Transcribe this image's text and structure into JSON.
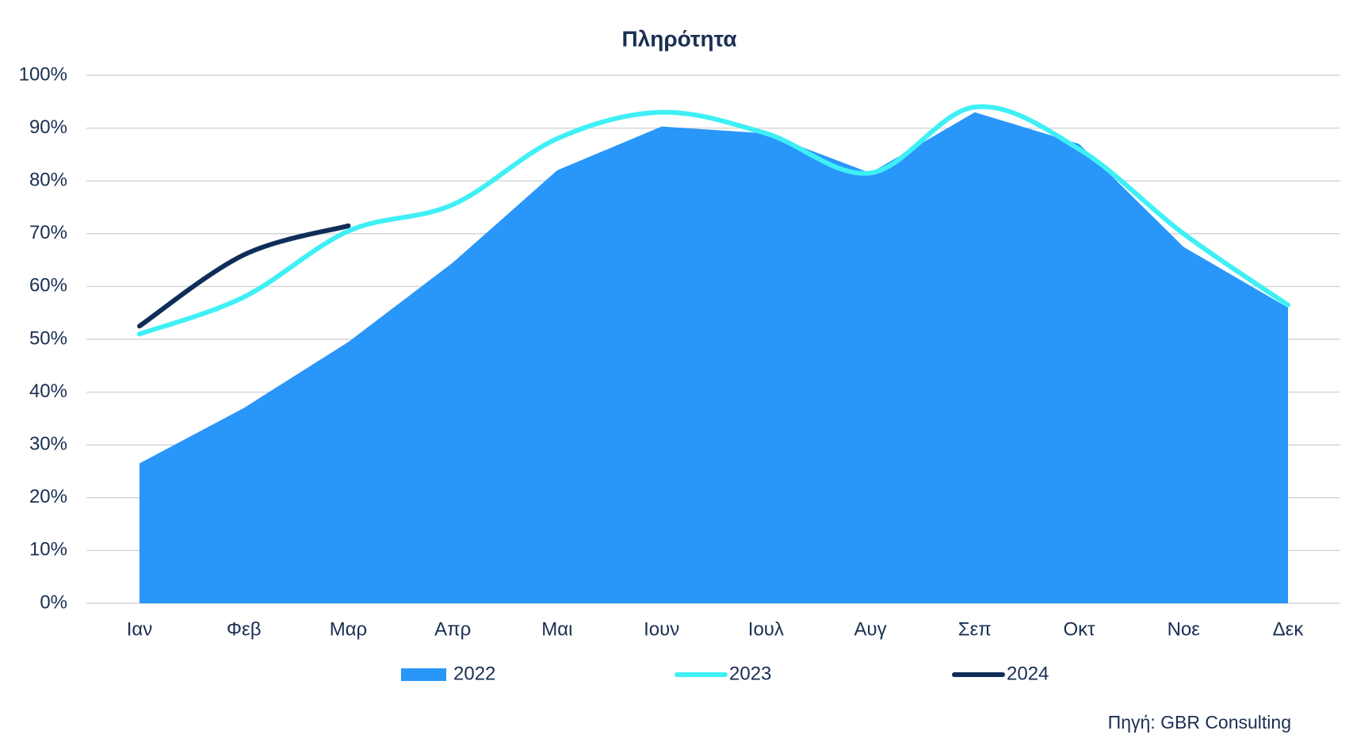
{
  "chart_data": {
    "type": "area-line",
    "title": "Πληρότητα",
    "categories": [
      "Ιαν",
      "Φεβ",
      "Μαρ",
      "Απρ",
      "Μαι",
      "Ιουν",
      "Ιουλ",
      "Αυγ",
      "Σεπ",
      "Οκτ",
      "Νοε",
      "Δεκ"
    ],
    "series": [
      {
        "name": "2022",
        "color": "#2996fa",
        "kind": "area",
        "values": [
          26.5,
          37,
          49.5,
          64.5,
          82,
          90.3,
          89,
          81.5,
          93,
          87,
          67.5,
          56
        ]
      },
      {
        "name": "2023",
        "color": "#3ef0f5",
        "kind": "line",
        "values": [
          51,
          58,
          70.5,
          75.5,
          88,
          93,
          89,
          81.5,
          94,
          86,
          70,
          56.5
        ]
      },
      {
        "name": "2024",
        "color": "#0f2d59",
        "kind": "line",
        "values": [
          52.5,
          66,
          71.5,
          null,
          null,
          null,
          null,
          null,
          null,
          null,
          null,
          null
        ]
      }
    ],
    "ylim": [
      0,
      100
    ],
    "yticks": [
      {
        "value": 0,
        "label": "0%"
      },
      {
        "value": 10,
        "label": "10%"
      },
      {
        "value": 20,
        "label": "20%"
      },
      {
        "value": 30,
        "label": "30%"
      },
      {
        "value": 40,
        "label": "40%"
      },
      {
        "value": 50,
        "label": "50%"
      },
      {
        "value": 60,
        "label": "60%"
      },
      {
        "value": 70,
        "label": "70%"
      },
      {
        "value": 80,
        "label": "80%"
      },
      {
        "value": 90,
        "label": "90%"
      },
      {
        "value": 100,
        "label": "100%"
      }
    ],
    "grid": true,
    "legend": "bottom",
    "source": "Πηγή: GBR Consulting"
  }
}
